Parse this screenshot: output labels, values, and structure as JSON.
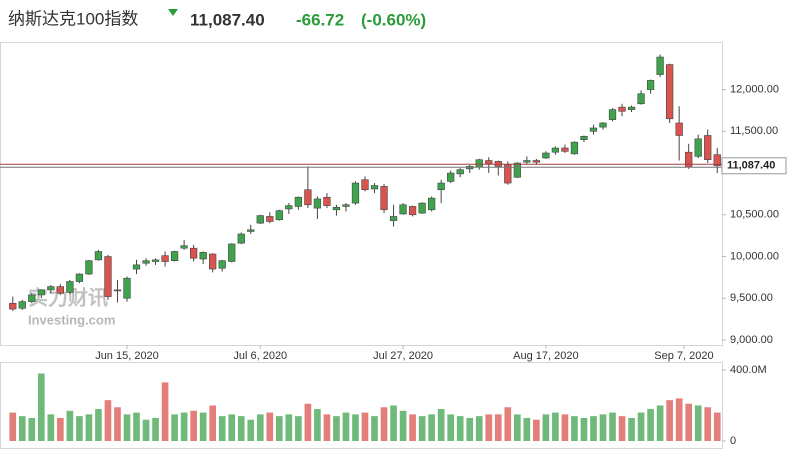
{
  "chart_data": {
    "type": "candlestick",
    "title": "纳斯达克100指数",
    "last_price": {
      "value": 11087.4,
      "label": "11,087.40"
    },
    "change": -66.72,
    "change_pct": {
      "value": -0.6,
      "label": "(-0.60%)"
    },
    "watermark": [
      "实力财讯",
      "Investing.com"
    ],
    "categories": [
      "2020-05-28",
      "2020-05-29",
      "2020-06-01",
      "2020-06-02",
      "2020-06-03",
      "2020-06-04",
      "2020-06-05",
      "2020-06-08",
      "2020-06-09",
      "2020-06-10",
      "2020-06-11",
      "2020-06-12",
      "2020-06-15",
      "2020-06-16",
      "2020-06-17",
      "2020-06-18",
      "2020-06-19",
      "2020-06-22",
      "2020-06-23",
      "2020-06-24",
      "2020-06-25",
      "2020-06-26",
      "2020-06-29",
      "2020-06-30",
      "2020-07-01",
      "2020-07-02",
      "2020-07-06",
      "2020-07-07",
      "2020-07-08",
      "2020-07-09",
      "2020-07-10",
      "2020-07-13",
      "2020-07-14",
      "2020-07-15",
      "2020-07-16",
      "2020-07-17",
      "2020-07-20",
      "2020-07-21",
      "2020-07-22",
      "2020-07-23",
      "2020-07-24",
      "2020-07-27",
      "2020-07-28",
      "2020-07-29",
      "2020-07-30",
      "2020-07-31",
      "2020-08-03",
      "2020-08-04",
      "2020-08-05",
      "2020-08-06",
      "2020-08-07",
      "2020-08-10",
      "2020-08-11",
      "2020-08-12",
      "2020-08-13",
      "2020-08-14",
      "2020-08-17",
      "2020-08-18",
      "2020-08-19",
      "2020-08-20",
      "2020-08-21",
      "2020-08-24",
      "2020-08-25",
      "2020-08-26",
      "2020-08-27",
      "2020-08-28",
      "2020-08-31",
      "2020-09-01",
      "2020-09-02",
      "2020-09-03",
      "2020-09-04",
      "2020-09-08",
      "2020-09-09",
      "2020-09-10",
      "2020-09-11"
    ],
    "open": [
      9440,
      9380,
      9460,
      9540,
      9600,
      9640,
      9570,
      9700,
      9790,
      9960,
      10000,
      9600,
      9500,
      9850,
      9920,
      9940,
      10010,
      9950,
      10100,
      10100,
      9970,
      10030,
      9860,
      9940,
      10160,
      10300,
      10400,
      10480,
      10440,
      10570,
      10600,
      10800,
      10580,
      10710,
      10560,
      10600,
      10640,
      10920,
      10810,
      10840,
      10430,
      10510,
      10600,
      10520,
      10560,
      10800,
      10900,
      10990,
      11050,
      11070,
      11150,
      11140,
      11100,
      10950,
      11130,
      11150,
      11180,
      11250,
      11300,
      11230,
      11400,
      11500,
      11550,
      11640,
      11790,
      11760,
      11830,
      12000,
      12180,
      12300,
      11600,
      11250,
      11200,
      11450,
      11220
    ],
    "high": [
      9520,
      9480,
      9560,
      9610,
      9660,
      9670,
      9720,
      9800,
      9960,
      10080,
      10020,
      9720,
      9760,
      9960,
      9980,
      9980,
      10060,
      10070,
      10200,
      10140,
      10060,
      10040,
      9960,
      10160,
      10290,
      10380,
      10500,
      10530,
      10560,
      10640,
      10720,
      11080,
      10720,
      10760,
      10620,
      10640,
      10900,
      10960,
      10880,
      10870,
      10620,
      10640,
      10610,
      10650,
      10720,
      10920,
      11030,
      11060,
      11100,
      11170,
      11190,
      11150,
      11140,
      11130,
      11200,
      11170,
      11260,
      11320,
      11340,
      11380,
      11450,
      11580,
      11610,
      11780,
      11830,
      11810,
      11990,
      12120,
      12420,
      12310,
      11800,
      11350,
      11460,
      11520,
      11300
    ],
    "low": [
      9350,
      9360,
      9440,
      9500,
      9560,
      9540,
      9550,
      9680,
      9780,
      9950,
      9480,
      9450,
      9460,
      9790,
      9890,
      9900,
      9880,
      9940,
      10080,
      9940,
      9910,
      9810,
      9820,
      9930,
      10150,
      10270,
      10390,
      10400,
      10430,
      10510,
      10560,
      10580,
      10450,
      10580,
      10490,
      10540,
      10620,
      10780,
      10760,
      10520,
      10360,
      10500,
      10480,
      10510,
      10540,
      10640,
      10880,
      10950,
      11000,
      11040,
      11000,
      10970,
      10860,
      10940,
      11110,
      11100,
      11170,
      11220,
      11240,
      11220,
      11370,
      11460,
      11520,
      11620,
      11680,
      11730,
      11820,
      11950,
      12150,
      11600,
      11150,
      11050,
      11180,
      11120,
      11000
    ],
    "close": [
      9370,
      9460,
      9540,
      9600,
      9640,
      9560,
      9700,
      9790,
      9950,
      10060,
      9520,
      9590,
      9740,
      9900,
      9950,
      9960,
      9940,
      10060,
      10130,
      9980,
      10050,
      9850,
      9950,
      10150,
      10270,
      10320,
      10490,
      10420,
      10550,
      10610,
      10710,
      10620,
      10690,
      10610,
      10590,
      10620,
      10880,
      10800,
      10850,
      10560,
      10480,
      10620,
      10500,
      10640,
      10700,
      10880,
      11000,
      11040,
      11080,
      11160,
      11110,
      11080,
      10880,
      11120,
      11150,
      11130,
      11240,
      11300,
      11260,
      11370,
      11440,
      11540,
      11600,
      11760,
      11740,
      11790,
      11950,
      12110,
      12390,
      11650,
      11450,
      11070,
      11410,
      11160,
      11087.4
    ],
    "volume": [
      160000000,
      140000000,
      130000000,
      380000000,
      150000000,
      130000000,
      170000000,
      140000000,
      150000000,
      180000000,
      230000000,
      190000000,
      150000000,
      160000000,
      120000000,
      130000000,
      330000000,
      150000000,
      160000000,
      170000000,
      160000000,
      200000000,
      140000000,
      150000000,
      140000000,
      120000000,
      150000000,
      160000000,
      140000000,
      150000000,
      140000000,
      210000000,
      180000000,
      150000000,
      140000000,
      160000000,
      150000000,
      160000000,
      140000000,
      190000000,
      200000000,
      170000000,
      150000000,
      140000000,
      150000000,
      180000000,
      150000000,
      140000000,
      130000000,
      140000000,
      150000000,
      150000000,
      190000000,
      150000000,
      130000000,
      120000000,
      150000000,
      160000000,
      150000000,
      140000000,
      130000000,
      140000000,
      150000000,
      160000000,
      140000000,
      130000000,
      160000000,
      180000000,
      200000000,
      230000000,
      240000000,
      210000000,
      200000000,
      190000000,
      160000000
    ],
    "up_color": "#3fa34d",
    "down_color": "#d9534f",
    "ylim": [
      8940,
      12570
    ],
    "yticks": [
      {
        "value": 9000,
        "label": "9,000.00"
      },
      {
        "value": 9500,
        "label": "9,500.00"
      },
      {
        "value": 10000,
        "label": "10,000.00"
      },
      {
        "value": 10500,
        "label": "10,500.00"
      },
      {
        "value": 11500,
        "label": "11,500.00"
      },
      {
        "value": 12000,
        "label": "12,000.00"
      }
    ],
    "volume_lim": [
      0,
      428000000
    ],
    "volume_ticks": [
      0,
      {
        "value": 400000000,
        "label": "400.0M"
      }
    ],
    "xticks": [
      {
        "value": "2020-06-15",
        "label": "Jun 15, 2020"
      },
      {
        "value": "2020-07-06",
        "label": "Jul 6, 2020"
      },
      {
        "value": "2020-07-27",
        "label": "Jul 27, 2020"
      },
      {
        "value": "2020-08-17",
        "label": "Aug 17, 2020"
      },
      {
        "value": "2020-09-07",
        "label": "Sep 7, 2020"
      }
    ]
  }
}
